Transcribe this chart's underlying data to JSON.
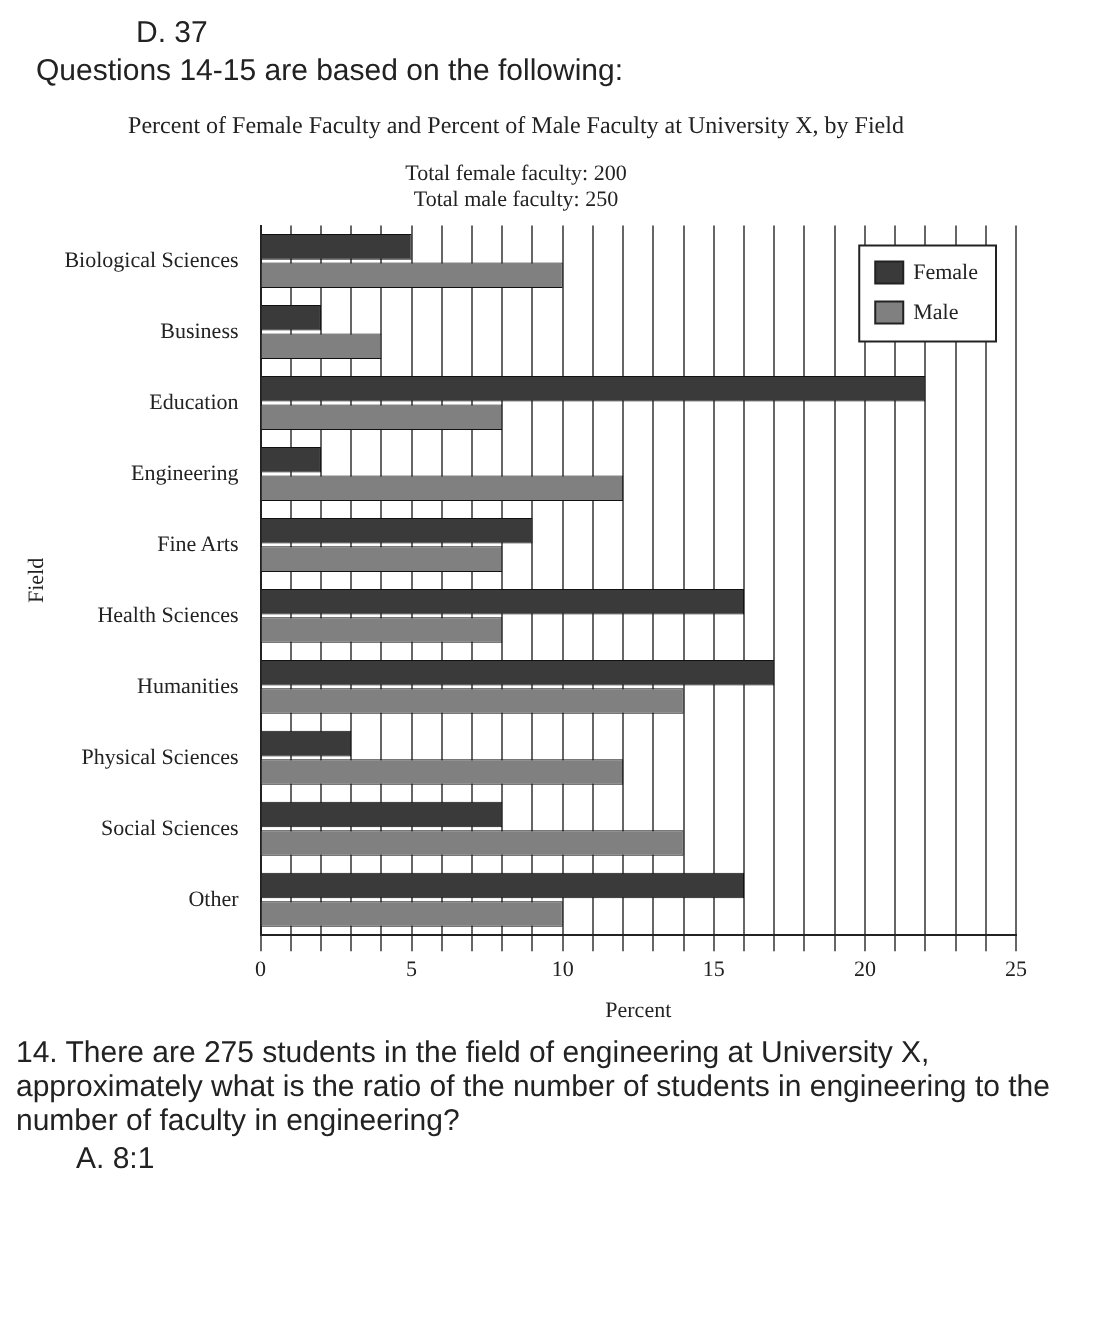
{
  "chart_data": {
    "type": "bar",
    "orientation": "horizontal",
    "title": "Percent of Female Faculty and Percent of Male Faculty at University X, by Field",
    "subtitle": "Total female faculty: 200\nTotal male faculty: 250",
    "xlabel": "Percent",
    "ylabel": "Field",
    "categories": [
      "Biological Sciences",
      "Business",
      "Education",
      "Engineering",
      "Fine Arts",
      "Health Sciences",
      "Humanities",
      "Physical Sciences",
      "Social Sciences",
      "Other"
    ],
    "series": [
      {
        "name": "Female",
        "color": "#3a3a3a",
        "values": [
          5,
          2,
          22,
          2,
          9,
          16,
          17,
          3,
          8,
          16
        ]
      },
      {
        "name": "Male",
        "color": "#808080",
        "values": [
          10,
          4,
          8,
          12,
          8,
          8,
          14,
          12,
          14,
          10
        ]
      }
    ],
    "xlim": [
      0,
      25
    ],
    "xticks": [
      0,
      {
        "value": 1,
        "label": null
      },
      {
        "value": 2,
        "label": null
      },
      {
        "value": 3,
        "label": null
      },
      {
        "value": 4,
        "label": null
      },
      5,
      {
        "value": 6,
        "label": null
      },
      {
        "value": 7,
        "label": null
      },
      {
        "value": 8,
        "label": null
      },
      {
        "value": 9,
        "label": null
      },
      10,
      {
        "value": 11,
        "label": null
      },
      {
        "value": 12,
        "label": null
      },
      {
        "value": 13,
        "label": null
      },
      {
        "value": 14,
        "label": null
      },
      15,
      {
        "value": 16,
        "label": null
      },
      {
        "value": 17,
        "label": null
      },
      {
        "value": 18,
        "label": null
      },
      {
        "value": 19,
        "label": null
      },
      20,
      {
        "value": 21,
        "label": null
      },
      {
        "value": 22,
        "label": null
      },
      {
        "value": 23,
        "label": null
      },
      {
        "value": 24,
        "label": null
      },
      25
    ],
    "grid": "x",
    "legend": "top right",
    "annotations": [
      "D. 37",
      "Questions 14-15 are based on the following:",
      "14. There are 275 students in the field of engineering at University X, approximately what is the ratio of the number of students in engineering to the number of faculty in engineering?",
      "A. 8:1"
    ]
  }
}
